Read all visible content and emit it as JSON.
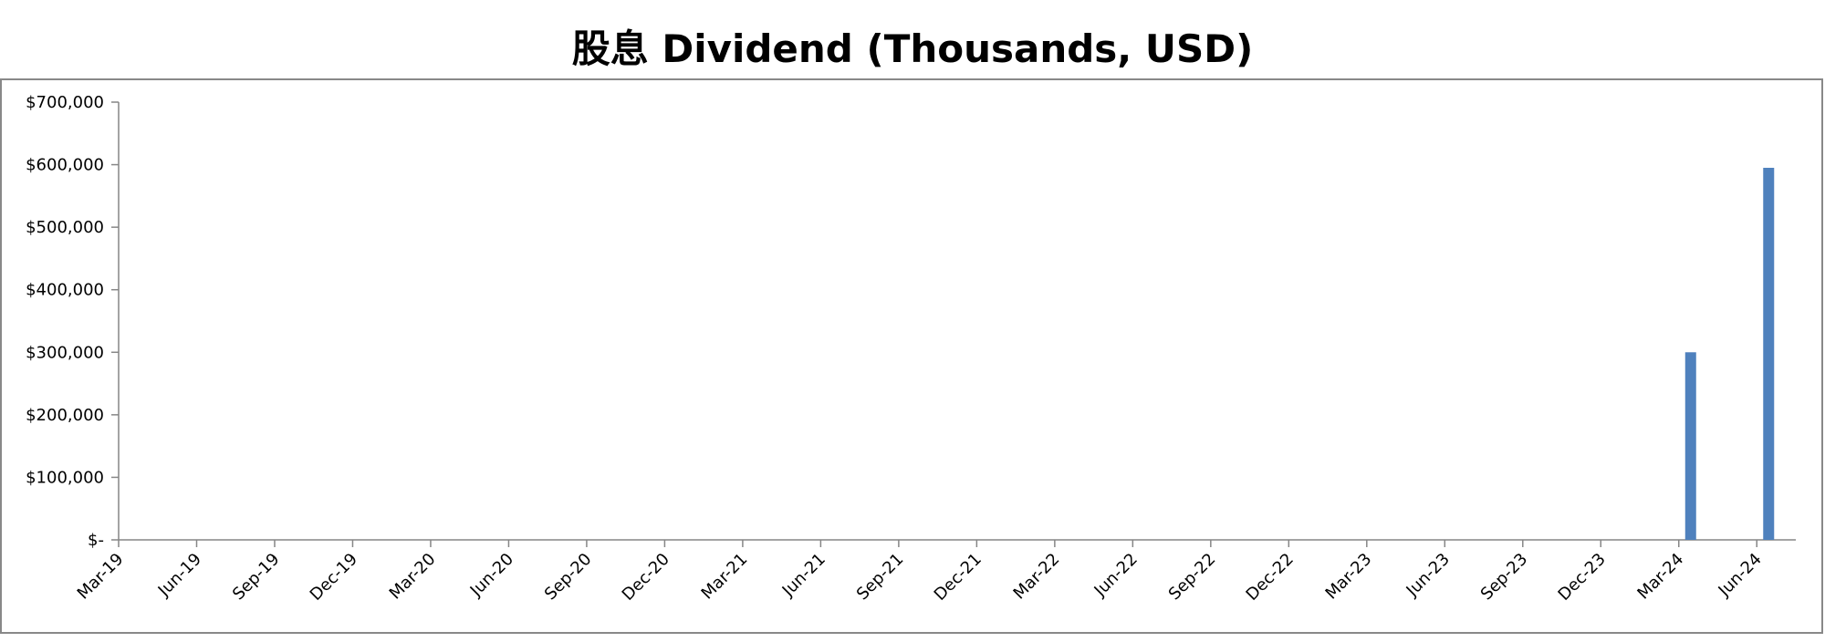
{
  "chart_data": {
    "type": "bar",
    "title": "股息 Dividend (Thousands, USD)",
    "xlabel": "",
    "ylabel": "",
    "categories": [
      "Mar-19",
      "Jun-19",
      "Sep-19",
      "Dec-19",
      "Mar-20",
      "Jun-20",
      "Sep-20",
      "Dec-20",
      "Mar-21",
      "Jun-21",
      "Sep-21",
      "Dec-21",
      "Mar-22",
      "Jun-22",
      "Sep-22",
      "Dec-22",
      "Mar-23",
      "Jun-23",
      "Sep-23",
      "Dec-23",
      "Mar-24",
      "Jun-24"
    ],
    "values": [
      0,
      0,
      0,
      0,
      0,
      0,
      0,
      0,
      0,
      0,
      0,
      0,
      0,
      0,
      0,
      0,
      0,
      0,
      0,
      0,
      300000,
      595000
    ],
    "ylim": [
      0,
      700000
    ],
    "yticks": [
      0,
      100000,
      200000,
      300000,
      400000,
      500000,
      600000,
      700000
    ],
    "ytick_labels": [
      "$-",
      "$100,000",
      "$200,000",
      "$300,000",
      "$400,000",
      "$500,000",
      "$600,000",
      "$700,000"
    ],
    "legend": "none",
    "grid": false,
    "bar_color": "#4f81bd"
  }
}
